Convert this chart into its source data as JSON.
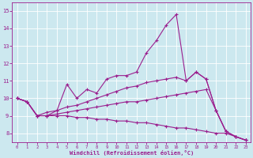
{
  "xlabel": "Windchill (Refroidissement éolien,°C)",
  "xlim": [
    -0.5,
    23.5
  ],
  "ylim": [
    7.5,
    15.5
  ],
  "yticks": [
    8,
    9,
    10,
    11,
    12,
    13,
    14,
    15
  ],
  "xticks": [
    0,
    1,
    2,
    3,
    4,
    5,
    6,
    7,
    8,
    9,
    10,
    11,
    12,
    13,
    14,
    15,
    16,
    17,
    18,
    19,
    20,
    21,
    22,
    23
  ],
  "background_color": "#cce8ef",
  "line_color": "#9b1e8e",
  "grid_color": "#ffffff",
  "series": {
    "line1_x": [
      0,
      1,
      2,
      3,
      4,
      5,
      6,
      7,
      8,
      9,
      10,
      11,
      12,
      13,
      14,
      15,
      16,
      17,
      18,
      19,
      20,
      21,
      22,
      23
    ],
    "line1_y": [
      10.0,
      9.8,
      9.0,
      9.0,
      9.3,
      10.8,
      10.0,
      10.5,
      10.3,
      11.1,
      11.3,
      11.3,
      11.5,
      12.6,
      13.3,
      14.2,
      14.8,
      11.0,
      11.5,
      11.1,
      9.3,
      8.1,
      7.8,
      7.6
    ],
    "line2_x": [
      0,
      1,
      2,
      3,
      4,
      5,
      6,
      7,
      8,
      9,
      10,
      11,
      12,
      13,
      14,
      15,
      16,
      17,
      18,
      19,
      20,
      21,
      22,
      23
    ],
    "line2_y": [
      10.0,
      9.8,
      9.0,
      9.2,
      9.3,
      9.5,
      9.6,
      9.8,
      10.0,
      10.2,
      10.4,
      10.6,
      10.7,
      10.9,
      11.0,
      11.1,
      11.2,
      11.0,
      11.5,
      11.1,
      9.3,
      8.1,
      7.8,
      7.6
    ],
    "line3_x": [
      0,
      1,
      2,
      3,
      4,
      5,
      6,
      7,
      8,
      9,
      10,
      11,
      12,
      13,
      14,
      15,
      16,
      17,
      18,
      19,
      20,
      21,
      22,
      23
    ],
    "line3_y": [
      10.0,
      9.8,
      9.0,
      9.0,
      9.1,
      9.2,
      9.3,
      9.4,
      9.5,
      9.6,
      9.7,
      9.8,
      9.8,
      9.9,
      10.0,
      10.1,
      10.2,
      10.3,
      10.4,
      10.5,
      9.3,
      8.1,
      7.8,
      7.6
    ],
    "line4_x": [
      0,
      1,
      2,
      3,
      4,
      5,
      6,
      7,
      8,
      9,
      10,
      11,
      12,
      13,
      14,
      15,
      16,
      17,
      18,
      19,
      20,
      21,
      22,
      23
    ],
    "line4_y": [
      10.0,
      9.8,
      9.0,
      9.0,
      9.0,
      9.0,
      8.9,
      8.9,
      8.8,
      8.8,
      8.7,
      8.7,
      8.6,
      8.6,
      8.5,
      8.4,
      8.3,
      8.3,
      8.2,
      8.1,
      8.0,
      8.0,
      7.8,
      7.6
    ]
  }
}
